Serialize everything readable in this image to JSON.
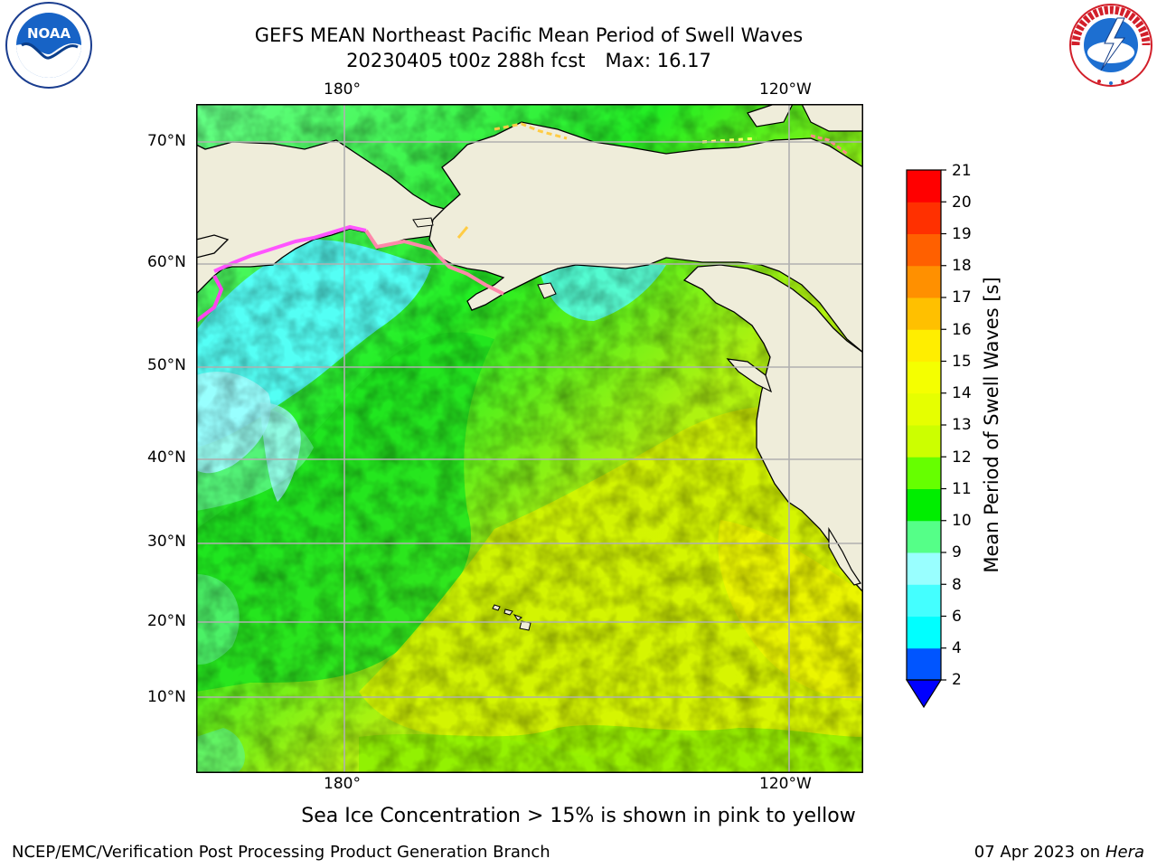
{
  "header": {
    "title_line1": "GEFS MEAN Northeast Pacific Mean Period of Swell Waves",
    "title_run": "20230405 t00z 288h fcst",
    "title_max": "Max: 16.17"
  },
  "logos": {
    "left": {
      "icon": "noaa-logo",
      "text": "NOAA",
      "ring_text": "NATIONAL OCEANIC AND ATMOSPHERIC ADMINISTRATION · U.S. DEPARTMENT OF COMMERCE"
    },
    "right": {
      "icon": "nws-logo",
      "ring_text": "NATIONAL WEATHER SERVICE"
    }
  },
  "map": {
    "lon_labels": [
      "180°",
      "120°W"
    ],
    "lat_labels": [
      "70°N",
      "60°N",
      "50°N",
      "40°N",
      "30°N",
      "20°N",
      "10°N"
    ],
    "colors": {
      "land": "#efedda",
      "gridline": "#b0b0b0",
      "coastline": "#000000",
      "ice": [
        "#ff55ff",
        "#ff8888",
        "#ffcc44",
        "#ffff66"
      ]
    }
  },
  "colorbar": {
    "label": "Mean Period of Swell Waves [s]",
    "ticks": [
      "21",
      "20",
      "19",
      "18",
      "17",
      "16",
      "15",
      "14",
      "13",
      "12",
      "11",
      "10",
      "9",
      "8",
      "6",
      "4",
      "2"
    ],
    "colors_bottom_to_top": [
      "#0055ff",
      "#00ffff",
      "#44ffff",
      "#99ffff",
      "#55ff88",
      "#00ee00",
      "#66ff00",
      "#ccff00",
      "#e6ff00",
      "#f5ff00",
      "#ffee00",
      "#ffc000",
      "#ff9000",
      "#ff6000",
      "#ff3000",
      "#ff0000"
    ],
    "under_color": "#0000ff"
  },
  "note": "Sea Ice Concentration > 15% is shown in pink to yellow",
  "footer": {
    "left": "NCEP/EMC/Verification Post Processing Product Generation Branch",
    "right_date": "07 Apr 2023 on ",
    "right_host": "Hera"
  }
}
